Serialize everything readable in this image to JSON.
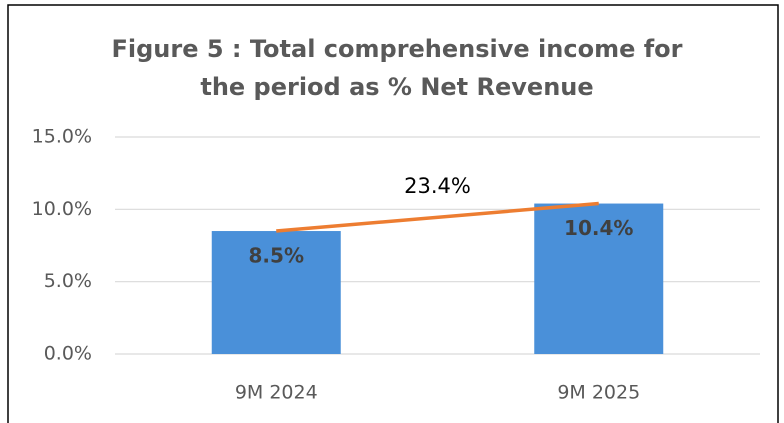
{
  "chart_data": {
    "type": "bar",
    "title": "Figure 5 : Total comprehensive income for the period as % Net Revenue",
    "categories": [
      "9M 2024",
      "9M 2025"
    ],
    "values": [
      8.5,
      10.4
    ],
    "value_labels": [
      "8.5%",
      "10.4%"
    ],
    "color": "#4a90d9",
    "line": {
      "values": [
        8.5,
        10.4
      ],
      "color": "#ed7d31"
    },
    "annotation": "23.4%",
    "ylim": [
      0,
      15
    ],
    "yticks": [
      {
        "value": 0,
        "label": "0.0%"
      },
      {
        "value": 5,
        "label": "5.0%"
      },
      {
        "value": 10,
        "label": "10.0%"
      },
      {
        "value": 15,
        "label": "15.0%"
      }
    ],
    "grid": true
  }
}
